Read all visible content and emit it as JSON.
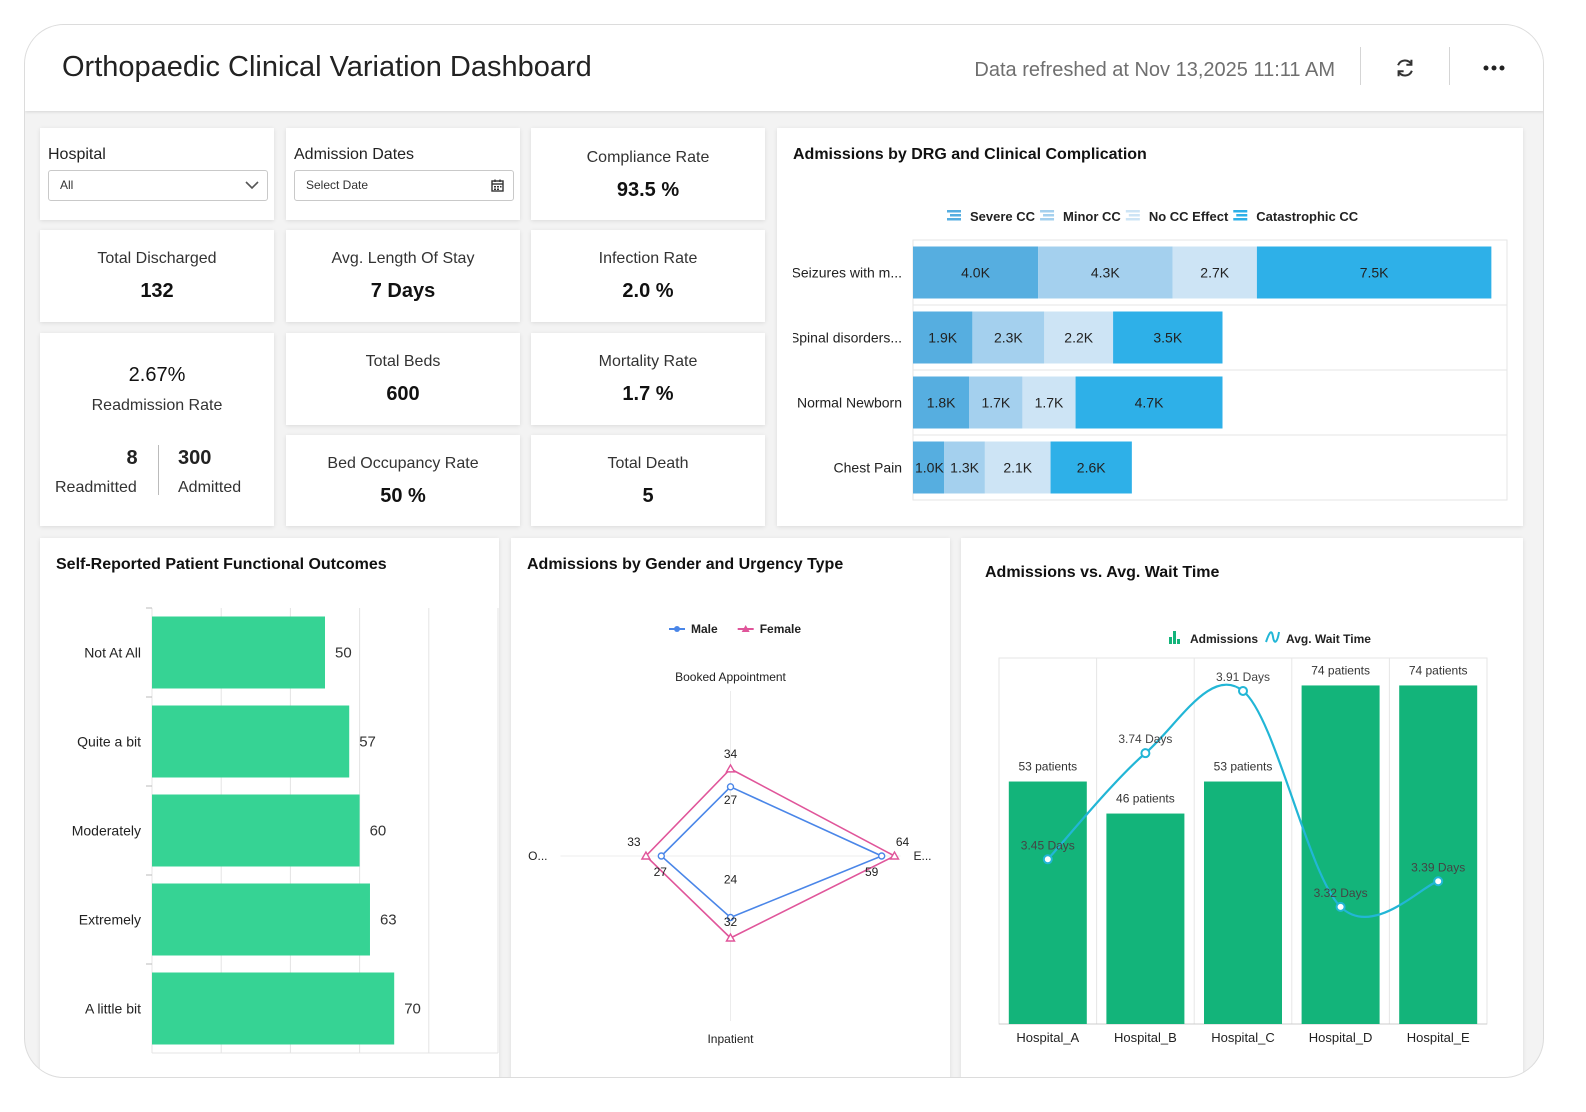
{
  "header": {
    "title": "Orthopaedic Clinical Variation Dashboard",
    "refreshed": "Data refreshed at Nov 13,2025 11:11 AM",
    "refresh_icon": "refresh-icon",
    "more_icon": "more-dots-icon"
  },
  "filters": {
    "hospital": {
      "label": "Hospital",
      "value": "All"
    },
    "admission_dates": {
      "label": "Admission Dates",
      "placeholder": "Select Date"
    }
  },
  "kpis": {
    "compliance": {
      "label": "Compliance Rate",
      "value": "93.5 %"
    },
    "discharged": {
      "label": "Total Discharged",
      "value": "132"
    },
    "los": {
      "label": "Avg. Length Of Stay",
      "value": "7 Days"
    },
    "infection": {
      "label": "Infection Rate",
      "value": "2.0 %"
    },
    "readmission": {
      "value": "2.67%",
      "label": "Readmission Rate",
      "readmitted_value": "8",
      "readmitted_label": "Readmitted",
      "admitted_value": "300",
      "admitted_label": "Admitted"
    },
    "beds": {
      "label": "Total Beds",
      "value": "600"
    },
    "mortality": {
      "label": "Mortality Rate",
      "value": "1.7 %"
    },
    "occupancy": {
      "label": "Bed Occupancy Rate",
      "value": "50 %"
    },
    "death": {
      "label": "Total Death",
      "value": "5"
    }
  },
  "colors": {
    "severe": "#56aee0",
    "minor": "#a4d0ee",
    "nocc": "#cde4f5",
    "catastrophic": "#2eb0e8",
    "green_bar": "#36d394",
    "green_dark": "#13b47a",
    "male": "#4a86e8",
    "female": "#e0559a",
    "wait_line": "#22b6d6"
  },
  "charts": {
    "drg": {
      "title": "Admissions by DRG and Clinical Complication",
      "chart_data": {
        "type": "bar",
        "orientation": "horizontal",
        "stacked": true,
        "categories": [
          "Seizures with m...",
          "Spinal disorders...",
          "Normal Newborn",
          "Chest Pain"
        ],
        "series": [
          {
            "name": "Severe CC",
            "values": [
              4.0,
              1.9,
              1.8,
              1.0
            ],
            "labels": [
              "4.0K",
              "1.9K",
              "1.8K",
              "1.0K"
            ]
          },
          {
            "name": "Minor CC",
            "values": [
              4.3,
              2.3,
              1.7,
              1.3
            ],
            "labels": [
              "4.3K",
              "2.3K",
              "1.7K",
              "1.3K"
            ]
          },
          {
            "name": "No CC Effect",
            "values": [
              2.7,
              2.2,
              1.7,
              2.1
            ],
            "labels": [
              "2.7K",
              "2.2K",
              "1.7K",
              "2.1K"
            ]
          },
          {
            "name": "Catastrophic CC",
            "values": [
              7.5,
              3.5,
              4.7,
              2.6
            ],
            "labels": [
              "7.5K",
              "3.5K",
              "4.7K",
              "2.6K"
            ]
          }
        ],
        "xlim": [
          0,
          19
        ]
      }
    },
    "outcomes": {
      "title": "Self-Reported Patient Functional Outcomes",
      "chart_data": {
        "type": "bar",
        "orientation": "horizontal",
        "categories": [
          "Not At All",
          "Quite a bit",
          "Moderately",
          "Extremely",
          "A little bit"
        ],
        "values": [
          50,
          57,
          60,
          63,
          70
        ],
        "xlim": [
          0,
          100
        ]
      }
    },
    "gender": {
      "title": "Admissions by Gender and Urgency Type",
      "chart_data": {
        "type": "radar",
        "axes": [
          "Booked Appointment",
          "E...",
          "Inpatient",
          "O..."
        ],
        "series": [
          {
            "name": "Male",
            "values": [
              27,
              59,
              24,
              27
            ]
          },
          {
            "name": "Female",
            "values": [
              34,
              64,
              32,
              33
            ]
          }
        ],
        "rmax": 80
      }
    },
    "wait": {
      "title": "Admissions vs. Avg. Wait Time",
      "chart_data": {
        "type": "bar",
        "categories": [
          "Hospital_A",
          "Hospital_B",
          "Hospital_C",
          "Hospital_D",
          "Hospital_E"
        ],
        "series": [
          {
            "name": "Admissions",
            "type": "bar",
            "values": [
              53,
              46,
              53,
              74,
              74
            ],
            "labels": [
              "53 patients",
              "46 patients",
              "53 patients",
              "74 patients",
              "74 patients"
            ]
          },
          {
            "name": "Avg. Wait Time",
            "type": "spline",
            "values": [
              3.45,
              3.74,
              3.91,
              3.32,
              3.39
            ],
            "labels": [
              "3.45 Days",
              "3.74 Days",
              "3.91 Days",
              "3.32 Days",
              "3.39 Days"
            ]
          }
        ],
        "ylim": [
          0,
          80
        ],
        "y2lim": [
          3.0,
          4.0
        ]
      }
    }
  }
}
